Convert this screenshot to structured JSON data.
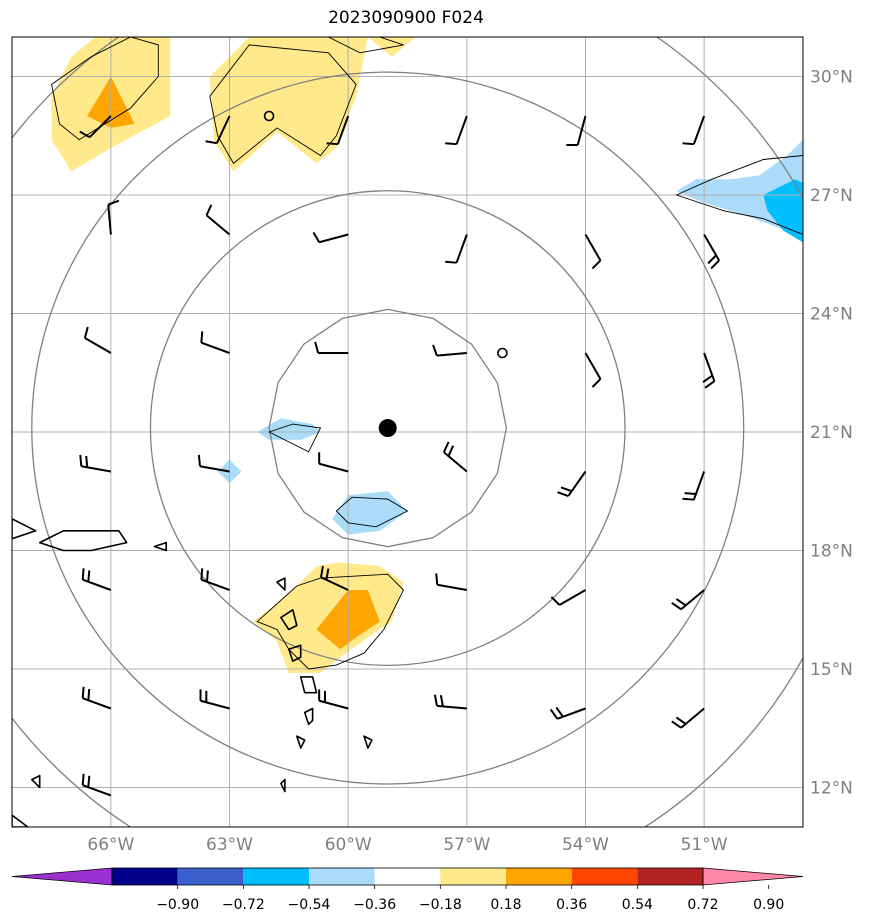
{
  "title": "2023090900 F024",
  "map": {
    "projection": "lat-lon",
    "lon_range": [
      -68.5,
      -48.5
    ],
    "lat_range": [
      11.0,
      31.0
    ],
    "gridlines": true,
    "lon_ticks": [
      {
        "value": -66,
        "label": "66°W"
      },
      {
        "value": -63,
        "label": "63°W"
      },
      {
        "value": -60,
        "label": "60°W"
      },
      {
        "value": -57,
        "label": "57°W"
      },
      {
        "value": -54,
        "label": "54°W"
      },
      {
        "value": -51,
        "label": "51°W"
      }
    ],
    "lat_ticks": [
      {
        "value": 30,
        "label": "30°N"
      },
      {
        "value": 27,
        "label": "27°N"
      },
      {
        "value": 24,
        "label": "24°N"
      },
      {
        "value": 21,
        "label": "21°N"
      },
      {
        "value": 18,
        "label": "18°N"
      },
      {
        "value": 15,
        "label": "15°N"
      },
      {
        "value": 12,
        "label": "12°N"
      }
    ],
    "storm_center": {
      "lon": -59.0,
      "lat": 21.1
    },
    "range_rings_deg": [
      3,
      6,
      9,
      12
    ],
    "colors": {
      "grid": "#b0b0b0",
      "ring": "#808080",
      "coast": "#000000",
      "pos_weak": "#ffe98a",
      "pos_mid": "#ffa500",
      "neg_weak": "#aadcfa",
      "neg_mid": "#00bfff"
    },
    "anomaly_fields": [
      {
        "level": "0.18-0.36",
        "points": [
          [
            -67.5,
            29.5
          ],
          [
            -67,
            30.5
          ],
          [
            -66.4,
            31.0
          ],
          [
            -64.5,
            31.0
          ],
          [
            -64.5,
            29.0
          ],
          [
            -65.8,
            28.3
          ],
          [
            -67.0,
            27.6
          ],
          [
            -67.5,
            28.4
          ]
        ]
      },
      {
        "level": "0.36-0.54",
        "points": [
          [
            -66.6,
            29.0
          ],
          [
            -66.0,
            30.0
          ],
          [
            -65.4,
            28.8
          ],
          [
            -66.0,
            28.7
          ]
        ]
      },
      {
        "level": "0.18-0.36",
        "points": [
          [
            -63.5,
            30.0
          ],
          [
            -62.5,
            31.0
          ],
          [
            -59.5,
            31.0
          ],
          [
            -59.8,
            29.5
          ],
          [
            -60.3,
            28.2
          ],
          [
            -60.8,
            27.8
          ],
          [
            -61.8,
            28.6
          ],
          [
            -62.9,
            27.6
          ],
          [
            -63.4,
            28.4
          ]
        ]
      },
      {
        "level": "0.18-0.36",
        "points": [
          [
            -59.5,
            31.0
          ],
          [
            -58.3,
            31.0
          ],
          [
            -58.9,
            30.5
          ]
        ]
      },
      {
        "level": "0.18-0.36",
        "points": [
          [
            -62.4,
            16.2
          ],
          [
            -61.5,
            16.9
          ],
          [
            -60.8,
            17.6
          ],
          [
            -60.2,
            17.7
          ],
          [
            -59.2,
            17.6
          ],
          [
            -58.6,
            17.2
          ],
          [
            -58.9,
            16.2
          ],
          [
            -59.5,
            15.8
          ],
          [
            -60.2,
            15.3
          ],
          [
            -60.7,
            14.9
          ],
          [
            -61.5,
            14.9
          ],
          [
            -61.8,
            15.7
          ]
        ]
      },
      {
        "level": "0.36-0.54",
        "points": [
          [
            -60.8,
            16.0
          ],
          [
            -60.0,
            17.0
          ],
          [
            -59.5,
            17.0
          ],
          [
            -59.2,
            16.2
          ],
          [
            -59.8,
            15.8
          ],
          [
            -60.2,
            15.5
          ]
        ]
      },
      {
        "level": "-0.36--0.18",
        "points": [
          [
            -62.3,
            21.0
          ],
          [
            -61.7,
            21.35
          ],
          [
            -60.9,
            21.2
          ],
          [
            -60.7,
            21.0
          ],
          [
            -61.2,
            20.8
          ],
          [
            -62.0,
            20.8
          ]
        ]
      },
      {
        "level": "-0.36--0.18",
        "points": [
          [
            -63.3,
            20.0
          ],
          [
            -63.0,
            20.3
          ],
          [
            -62.7,
            20.0
          ],
          [
            -63.0,
            19.7
          ]
        ]
      },
      {
        "level": "-0.36--0.18",
        "points": [
          [
            -60.4,
            18.8
          ],
          [
            -60.0,
            19.4
          ],
          [
            -59.0,
            19.5
          ],
          [
            -58.5,
            19.0
          ],
          [
            -59.2,
            18.5
          ],
          [
            -60.0,
            18.4
          ]
        ]
      },
      {
        "level": "-0.36--0.18",
        "points": [
          [
            -51.7,
            27.1
          ],
          [
            -51.2,
            27.4
          ],
          [
            -50.3,
            27.4
          ],
          [
            -49.6,
            27.5
          ],
          [
            -48.9,
            28.0
          ],
          [
            -48.5,
            28.4
          ],
          [
            -48.5,
            26.0
          ],
          [
            -49.2,
            26.2
          ],
          [
            -50.0,
            26.5
          ],
          [
            -51.0,
            26.8
          ]
        ]
      },
      {
        "level": "-0.54--0.36",
        "points": [
          [
            -49.5,
            27.0
          ],
          [
            -48.7,
            27.4
          ],
          [
            -48.5,
            27.3
          ],
          [
            -48.5,
            25.8
          ],
          [
            -49.0,
            26.1
          ],
          [
            -49.4,
            26.6
          ]
        ]
      }
    ],
    "contours": [
      {
        "points": [
          [
            -67.5,
            29.8
          ],
          [
            -66.5,
            30.5
          ],
          [
            -65.5,
            31.0
          ],
          [
            -64.8,
            30.8
          ],
          [
            -64.8,
            30.0
          ],
          [
            -65.5,
            29.2
          ],
          [
            -66.8,
            28.4
          ],
          [
            -67.3,
            28.8
          ]
        ]
      },
      {
        "points": [
          [
            -63.5,
            29.5
          ],
          [
            -62.5,
            30.8
          ],
          [
            -60.5,
            30.6
          ],
          [
            -59.8,
            29.8
          ],
          [
            -60.3,
            28.5
          ],
          [
            -60.7,
            28.0
          ],
          [
            -61.8,
            28.7
          ],
          [
            -62.9,
            27.8
          ],
          [
            -63.3,
            28.5
          ]
        ]
      },
      {
        "points": [
          [
            -60.5,
            31.0
          ],
          [
            -59.2,
            31.0
          ],
          [
            -58.6,
            30.8
          ],
          [
            -59.7,
            30.6
          ]
        ]
      },
      {
        "points": [
          [
            -51.7,
            27.0
          ],
          [
            -50.8,
            27.4
          ],
          [
            -49.5,
            27.9
          ],
          [
            -48.5,
            28.0
          ],
          [
            -48.5,
            26.0
          ],
          [
            -49.5,
            26.4
          ],
          [
            -50.5,
            26.6
          ]
        ]
      },
      {
        "points": [
          [
            -62.0,
            21.0
          ],
          [
            -61.4,
            21.2
          ],
          [
            -60.7,
            21.1
          ],
          [
            -61.0,
            20.5
          ]
        ]
      },
      {
        "points": [
          [
            -60.3,
            19.0
          ],
          [
            -59.9,
            19.35
          ],
          [
            -59.0,
            19.3
          ],
          [
            -58.5,
            19.0
          ],
          [
            -59.3,
            18.6
          ],
          [
            -60.0,
            18.7
          ]
        ]
      },
      {
        "points": [
          [
            -62.3,
            16.2
          ],
          [
            -61.3,
            17.1
          ],
          [
            -60.7,
            17.3
          ],
          [
            -59.0,
            17.4
          ],
          [
            -58.6,
            17.0
          ],
          [
            -59.1,
            16.0
          ],
          [
            -59.6,
            15.4
          ],
          [
            -60.3,
            15.1
          ],
          [
            -61.0,
            15.0
          ],
          [
            -61.5,
            15.5
          ],
          [
            -61.8,
            16.0
          ]
        ]
      }
    ],
    "islands": [
      [
        [
          -67.8,
          18.2
        ],
        [
          -67.2,
          18.5
        ],
        [
          -65.8,
          18.5
        ],
        [
          -65.6,
          18.2
        ],
        [
          -66.5,
          18.0
        ],
        [
          -67.2,
          18.0
        ]
      ],
      [
        [
          -68.5,
          18.8
        ],
        [
          -67.9,
          18.5
        ],
        [
          -68.5,
          18.3
        ]
      ],
      [
        [
          -64.9,
          18.1
        ],
        [
          -64.6,
          18.2
        ],
        [
          -64.6,
          18.0
        ]
      ],
      [
        [
          -61.8,
          17.2
        ],
        [
          -61.6,
          17.3
        ],
        [
          -61.6,
          17.0
        ]
      ],
      [
        [
          -61.7,
          16.3
        ],
        [
          -61.4,
          16.5
        ],
        [
          -61.3,
          16.1
        ],
        [
          -61.5,
          16.0
        ]
      ],
      [
        [
          -61.5,
          15.5
        ],
        [
          -61.2,
          15.6
        ],
        [
          -61.2,
          15.3
        ],
        [
          -61.4,
          15.2
        ]
      ],
      [
        [
          -61.2,
          14.8
        ],
        [
          -60.9,
          14.8
        ],
        [
          -60.8,
          14.4
        ],
        [
          -61.1,
          14.4
        ]
      ],
      [
        [
          -61.1,
          13.9
        ],
        [
          -60.9,
          14.0
        ],
        [
          -60.9,
          13.7
        ],
        [
          -61.0,
          13.6
        ]
      ],
      [
        [
          -59.6,
          13.3
        ],
        [
          -59.4,
          13.2
        ],
        [
          -59.5,
          13.0
        ]
      ],
      [
        [
          -61.3,
          13.3
        ],
        [
          -61.1,
          13.2
        ],
        [
          -61.2,
          13.0
        ]
      ],
      [
        [
          -61.7,
          12.1
        ],
        [
          -61.6,
          12.2
        ],
        [
          -61.6,
          11.9
        ]
      ],
      [
        [
          -68.0,
          12.2
        ],
        [
          -67.8,
          12.3
        ],
        [
          -67.8,
          12.0
        ]
      ],
      [
        [
          -68.5,
          11.3
        ],
        [
          -68.1,
          11.0
        ],
        [
          -68.5,
          11.0
        ]
      ]
    ],
    "small_circles": [
      {
        "lon": -62.0,
        "lat": 29.0
      },
      {
        "lon": -56.1,
        "lat": 23.0
      }
    ],
    "wind_barbs": [
      {
        "lon": -66.0,
        "lat": 29.0,
        "dir": 225,
        "barbs": 1
      },
      {
        "lon": -63.0,
        "lat": 29.0,
        "dir": 205,
        "barbs": 1
      },
      {
        "lon": -60.0,
        "lat": 29.0,
        "dir": 200,
        "barbs": 1
      },
      {
        "lon": -57.0,
        "lat": 29.0,
        "dir": 200,
        "barbs": 1
      },
      {
        "lon": -54.0,
        "lat": 29.0,
        "dir": 195,
        "barbs": 1
      },
      {
        "lon": -51.0,
        "lat": 29.0,
        "dir": 200,
        "barbs": 1
      },
      {
        "lon": -66.0,
        "lat": 26.0,
        "dir": 355,
        "barbs": 1
      },
      {
        "lon": -63.0,
        "lat": 26.0,
        "dir": 310,
        "barbs": 1
      },
      {
        "lon": -60.0,
        "lat": 26.0,
        "dir": 255,
        "barbs": 1
      },
      {
        "lon": -57.0,
        "lat": 26.0,
        "dir": 200,
        "barbs": 1
      },
      {
        "lon": -54.0,
        "lat": 26.0,
        "dir": 150,
        "barbs": 1
      },
      {
        "lon": -51.0,
        "lat": 26.0,
        "dir": 150,
        "barbs": 2
      },
      {
        "lon": -66.0,
        "lat": 23.0,
        "dir": 300,
        "barbs": 1
      },
      {
        "lon": -63.0,
        "lat": 23.0,
        "dir": 290,
        "barbs": 1
      },
      {
        "lon": -60.0,
        "lat": 23.0,
        "dir": 270,
        "barbs": 1
      },
      {
        "lon": -57.0,
        "lat": 23.0,
        "dir": 265,
        "barbs": 1
      },
      {
        "lon": -54.0,
        "lat": 23.0,
        "dir": 150,
        "barbs": 1
      },
      {
        "lon": -51.0,
        "lat": 23.0,
        "dir": 160,
        "barbs": 2
      },
      {
        "lon": -66.0,
        "lat": 20.0,
        "dir": 280,
        "barbs": 2
      },
      {
        "lon": -63.0,
        "lat": 20.0,
        "dir": 280,
        "barbs": 1
      },
      {
        "lon": -60.0,
        "lat": 20.0,
        "dir": 285,
        "barbs": 1
      },
      {
        "lon": -57.0,
        "lat": 20.0,
        "dir": 310,
        "barbs": 2
      },
      {
        "lon": -54.0,
        "lat": 20.0,
        "dir": 215,
        "barbs": 2
      },
      {
        "lon": -51.0,
        "lat": 20.0,
        "dir": 200,
        "barbs": 2
      },
      {
        "lon": -66.0,
        "lat": 17.0,
        "dir": 290,
        "barbs": 2
      },
      {
        "lon": -63.0,
        "lat": 17.0,
        "dir": 290,
        "barbs": 2
      },
      {
        "lon": -60.0,
        "lat": 17.0,
        "dir": 295,
        "barbs": 2
      },
      {
        "lon": -57.0,
        "lat": 17.0,
        "dir": 280,
        "barbs": 1
      },
      {
        "lon": -54.0,
        "lat": 17.0,
        "dir": 240,
        "barbs": 1
      },
      {
        "lon": -51.0,
        "lat": 17.0,
        "dir": 230,
        "barbs": 2
      },
      {
        "lon": -66.0,
        "lat": 14.0,
        "dir": 290,
        "barbs": 2
      },
      {
        "lon": -63.0,
        "lat": 14.0,
        "dir": 285,
        "barbs": 2
      },
      {
        "lon": -60.0,
        "lat": 14.0,
        "dir": 285,
        "barbs": 2
      },
      {
        "lon": -57.0,
        "lat": 14.0,
        "dir": 275,
        "barbs": 2
      },
      {
        "lon": -54.0,
        "lat": 14.0,
        "dir": 250,
        "barbs": 2
      },
      {
        "lon": -51.0,
        "lat": 14.0,
        "dir": 230,
        "barbs": 2
      },
      {
        "lon": -66.0,
        "lat": 11.8,
        "dir": 290,
        "barbs": 2
      }
    ]
  },
  "colorbar": {
    "colors": [
      "#9b30d0",
      "#00008b",
      "#3a5fcd",
      "#00bfff",
      "#aadcfa",
      "#ffffff",
      "#ffe98a",
      "#ffa500",
      "#ff4500",
      "#b22222",
      "#ff88aa"
    ],
    "ticks": [
      "−0.90",
      "−0.72",
      "−0.54",
      "−0.36",
      "−0.18",
      "0.18",
      "0.36",
      "0.54",
      "0.72",
      "0.90"
    ]
  }
}
